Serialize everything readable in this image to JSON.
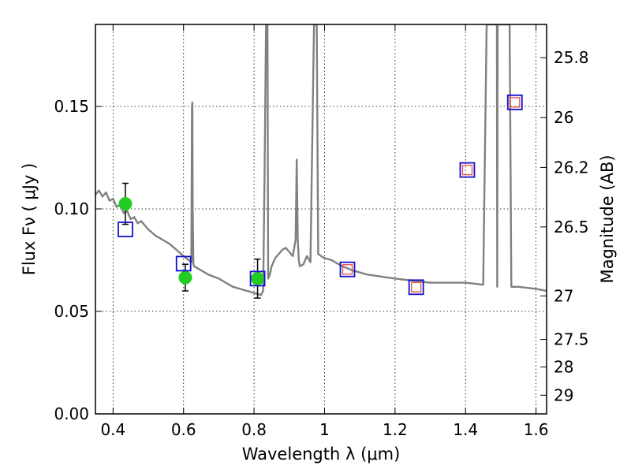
{
  "chart_data": {
    "type": "scatter",
    "xlabel": "Wavelength  λ (μm)",
    "ylabel": "Flux  Fν  ( μJy )",
    "y2label": "Magnitude (AB)",
    "xlim": [
      0.35,
      1.63
    ],
    "ylim": [
      0.0,
      0.19
    ],
    "grid": true,
    "x_ticks": [
      {
        "value": 0.4,
        "label": "0.4"
      },
      {
        "value": 0.6,
        "label": "0.6"
      },
      {
        "value": 0.8,
        "label": "0.8"
      },
      {
        "value": 1.0,
        "label": "1"
      },
      {
        "value": 1.2,
        "label": "1.2"
      },
      {
        "value": 1.4,
        "label": "1.4"
      },
      {
        "value": 1.6,
        "label": "1.6"
      }
    ],
    "y_ticks": [
      {
        "value": 0.0,
        "label": "0.00"
      },
      {
        "value": 0.05,
        "label": "0.05"
      },
      {
        "value": 0.1,
        "label": "0.10"
      },
      {
        "value": 0.15,
        "label": "0.15"
      }
    ],
    "mag_ticks": [
      {
        "mag": 25.8,
        "label": "25.8"
      },
      {
        "mag": 26.0,
        "label": "26"
      },
      {
        "mag": 26.2,
        "label": "26.2"
      },
      {
        "mag": 26.5,
        "label": "26.5"
      },
      {
        "mag": 27.0,
        "label": "27"
      },
      {
        "mag": 27.5,
        "label": "27.5"
      },
      {
        "mag": 28.0,
        "label": "28"
      },
      {
        "mag": 29.0,
        "label": "29"
      }
    ],
    "series": [
      {
        "style": "line",
        "color": "#808080",
        "x": [
          0.35,
          0.36,
          0.37,
          0.38,
          0.39,
          0.4,
          0.41,
          0.42,
          0.43,
          0.44,
          0.45,
          0.46,
          0.47,
          0.48,
          0.5,
          0.52,
          0.54,
          0.56,
          0.58,
          0.6,
          0.615,
          0.622,
          0.624,
          0.625,
          0.626,
          0.628,
          0.63,
          0.65,
          0.67,
          0.7,
          0.72,
          0.74,
          0.76,
          0.78,
          0.8,
          0.82,
          0.826,
          0.83,
          0.834,
          0.836,
          0.838,
          0.84,
          0.845,
          0.85,
          0.86,
          0.87,
          0.88,
          0.89,
          0.9,
          0.91,
          0.918,
          0.921,
          0.924,
          0.927,
          0.93,
          0.94,
          0.95,
          0.96,
          0.97,
          0.972,
          0.975,
          0.978,
          0.982,
          0.99,
          1.0,
          1.02,
          1.05,
          1.08,
          1.12,
          1.16,
          1.2,
          1.25,
          1.3,
          1.35,
          1.4,
          1.45,
          1.46,
          1.462,
          1.47,
          1.48,
          1.485,
          1.489,
          1.49,
          1.491,
          1.495,
          1.499,
          1.5,
          1.501,
          1.51,
          1.52,
          1.525,
          1.53,
          1.55,
          1.6,
          1.63
        ],
        "y": [
          0.107,
          0.109,
          0.106,
          0.108,
          0.104,
          0.105,
          0.101,
          0.102,
          0.098,
          0.099,
          0.095,
          0.096,
          0.093,
          0.094,
          0.09,
          0.087,
          0.085,
          0.083,
          0.08,
          0.077,
          0.075,
          0.074,
          0.15,
          0.152,
          0.1,
          0.073,
          0.072,
          0.07,
          0.068,
          0.066,
          0.064,
          0.062,
          0.061,
          0.06,
          0.059,
          0.058,
          0.06,
          0.12,
          0.19,
          0.19,
          0.19,
          0.066,
          0.068,
          0.072,
          0.076,
          0.078,
          0.08,
          0.081,
          0.079,
          0.077,
          0.085,
          0.124,
          0.085,
          0.075,
          0.072,
          0.073,
          0.077,
          0.074,
          0.19,
          0.19,
          0.19,
          0.19,
          0.078,
          0.077,
          0.076,
          0.075,
          0.072,
          0.07,
          0.068,
          0.067,
          0.066,
          0.065,
          0.064,
          0.064,
          0.064,
          0.063,
          0.19,
          0.19,
          0.19,
          0.19,
          0.19,
          0.19,
          0.062,
          0.19,
          0.19,
          0.19,
          0.19,
          0.19,
          0.19,
          0.19,
          0.19,
          0.062,
          0.062,
          0.061,
          0.06
        ]
      },
      {
        "style": "markers",
        "marker": "circle",
        "color": "#22cc22",
        "x": [
          0.435,
          0.605,
          0.81
        ],
        "y": [
          0.1025,
          0.0665,
          0.066
        ],
        "yerr": [
          0.01,
          0.0065,
          0.0095
        ]
      },
      {
        "style": "markers",
        "marker": "square",
        "color": "#1010cc",
        "x": [
          0.435,
          0.6,
          0.81,
          1.065,
          1.26,
          1.405,
          1.54
        ],
        "y": [
          0.09,
          0.0733,
          0.066,
          0.0705,
          0.0618,
          0.119,
          0.152
        ]
      },
      {
        "style": "markers",
        "marker": "square",
        "color": "#ee5555",
        "x": [
          1.065,
          1.26,
          1.405,
          1.54
        ],
        "y": [
          0.0705,
          0.0618,
          0.119,
          0.152
        ]
      }
    ]
  }
}
